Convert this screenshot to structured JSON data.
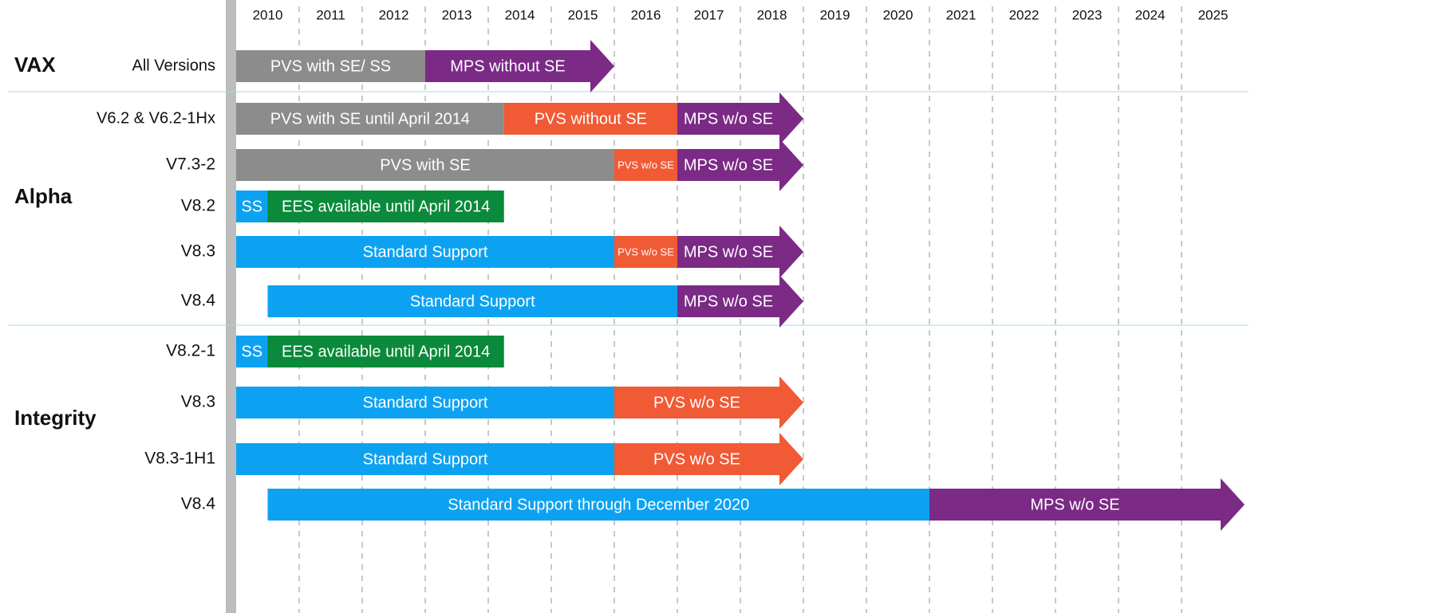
{
  "years": [
    2010,
    2011,
    2012,
    2013,
    2014,
    2015,
    2016,
    2017,
    2018,
    2019,
    2020,
    2021,
    2022,
    2023,
    2024,
    2025
  ],
  "groups": [
    {
      "name": "VAX",
      "rows": [
        {
          "label": "All Versions",
          "segments": [
            {
              "label": "PVS with SE/ SS",
              "start": 2010,
              "end": 2013,
              "color": "#8c8c8c"
            },
            {
              "label": "MPS without SE",
              "start": 2013,
              "end": 2016,
              "color": "#7b2a86",
              "arrow": true
            }
          ]
        }
      ]
    },
    {
      "name": "Alpha",
      "rows": [
        {
          "label": "V6.2 & V6.2-1Hx",
          "segments": [
            {
              "label": "PVS with SE until April 2014",
              "start": 2010,
              "end": 2014.25,
              "color": "#8c8c8c"
            },
            {
              "label": "PVS without SE",
              "start": 2014.25,
              "end": 2017,
              "color": "#f05a35"
            },
            {
              "label": "MPS w/o SE",
              "start": 2017,
              "end": 2019,
              "color": "#7b2a86",
              "arrow": true
            }
          ]
        },
        {
          "label": "V7.3-2",
          "segments": [
            {
              "label": "PVS with SE",
              "start": 2010,
              "end": 2016,
              "color": "#8c8c8c"
            },
            {
              "label": "PVS w/o SE",
              "start": 2016,
              "end": 2017,
              "color": "#f05a35"
            },
            {
              "label": "MPS w/o SE",
              "start": 2017,
              "end": 2019,
              "color": "#7b2a86",
              "arrow": true
            }
          ]
        },
        {
          "label": "V8.2",
          "segments": [
            {
              "label": "SS",
              "start": 2010,
              "end": 2010.5,
              "color": "#0da2f1"
            },
            {
              "label": "EES available until April 2014",
              "start": 2010.5,
              "end": 2014.25,
              "color": "#0a8a3a"
            }
          ]
        },
        {
          "label": "V8.3",
          "segments": [
            {
              "label": "Standard Support",
              "start": 2010,
              "end": 2016,
              "color": "#0da2f1"
            },
            {
              "label": "PVS w/o SE",
              "start": 2016,
              "end": 2017,
              "color": "#f05a35"
            },
            {
              "label": "MPS w/o SE",
              "start": 2017,
              "end": 2019,
              "color": "#7b2a86",
              "arrow": true
            }
          ]
        },
        {
          "label": "V8.4",
          "segments": [
            {
              "label": "Standard Support",
              "start": 2010.5,
              "end": 2017,
              "color": "#0da2f1"
            },
            {
              "label": "MPS w/o SE",
              "start": 2017,
              "end": 2019,
              "color": "#7b2a86",
              "arrow": true
            }
          ]
        }
      ]
    },
    {
      "name": "Integrity",
      "rows": [
        {
          "label": "V8.2-1",
          "segments": [
            {
              "label": "SS",
              "start": 2010,
              "end": 2010.5,
              "color": "#0da2f1"
            },
            {
              "label": "EES available until April 2014",
              "start": 2010.5,
              "end": 2014.25,
              "color": "#0a8a3a"
            }
          ]
        },
        {
          "label": "V8.3",
          "segments": [
            {
              "label": "Standard Support",
              "start": 2010,
              "end": 2016,
              "color": "#0da2f1"
            },
            {
              "label": "PVS w/o SE",
              "start": 2016,
              "end": 2019,
              "color": "#f05a35",
              "arrow": true
            }
          ]
        },
        {
          "label": "V8.3-1H1",
          "segments": [
            {
              "label": "Standard Support",
              "start": 2010,
              "end": 2016,
              "color": "#0da2f1"
            },
            {
              "label": "PVS w/o SE",
              "start": 2016,
              "end": 2019,
              "color": "#f05a35",
              "arrow": true
            }
          ]
        },
        {
          "label": "V8.4",
          "segments": [
            {
              "label": "Standard Support through December 2020",
              "start": 2010.5,
              "end": 2021,
              "color": "#0da2f1"
            },
            {
              "label": "MPS w/o SE",
              "start": 2021,
              "end": 2026,
              "color": "#7b2a86",
              "arrow": true
            }
          ]
        }
      ]
    }
  ]
}
